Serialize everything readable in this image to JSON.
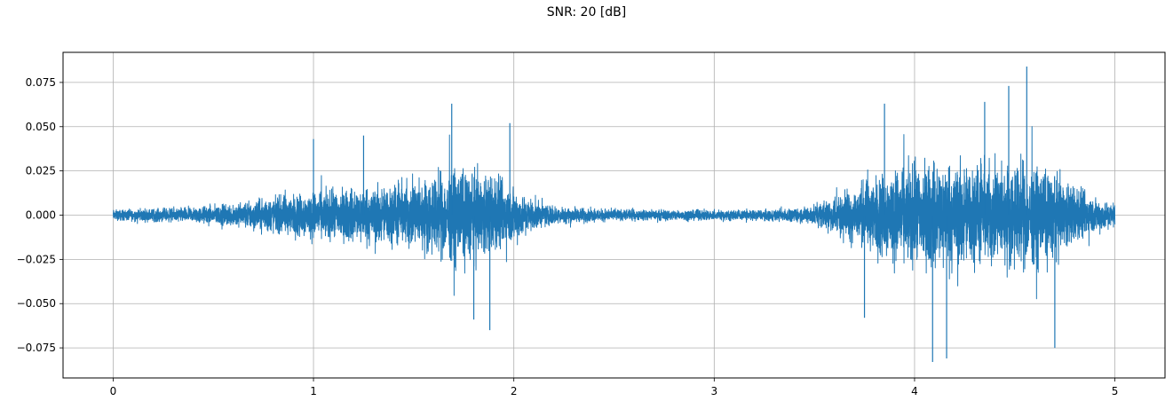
{
  "chart_data": {
    "type": "line",
    "title": "SNR: 20 [dB]",
    "xlabel": "",
    "ylabel": "",
    "xlim": [
      -0.25,
      5.25
    ],
    "ylim": [
      -0.092,
      0.092
    ],
    "grid": true,
    "xticks": [
      0,
      1,
      2,
      3,
      4,
      5
    ],
    "xtick_labels": [
      "0",
      "1",
      "2",
      "3",
      "4",
      "5"
    ],
    "yticks": [
      -0.075,
      -0.05,
      -0.025,
      0.0,
      0.025,
      0.05,
      0.075
    ],
    "ytick_labels": [
      "−0.075",
      "−0.050",
      "−0.025",
      "0.000",
      "0.025",
      "0.050",
      "0.075"
    ],
    "series": [
      {
        "color": "#1f77b4",
        "duration": 5.0,
        "envelope": {
          "t": [
            0.0,
            0.2,
            0.4,
            0.6,
            0.8,
            1.0,
            1.2,
            1.4,
            1.6,
            1.7,
            1.8,
            1.9,
            2.0,
            2.1,
            2.2,
            2.4,
            2.6,
            2.8,
            3.0,
            3.2,
            3.4,
            3.5,
            3.6,
            3.7,
            3.8,
            3.9,
            4.0,
            4.1,
            4.2,
            4.3,
            4.4,
            4.5,
            4.6,
            4.7,
            4.8,
            4.9,
            5.0
          ],
          "amp": [
            0.004,
            0.005,
            0.006,
            0.009,
            0.014,
            0.018,
            0.021,
            0.024,
            0.03,
            0.036,
            0.034,
            0.03,
            0.022,
            0.012,
            0.007,
            0.005,
            0.004,
            0.004,
            0.004,
            0.004,
            0.005,
            0.008,
            0.014,
            0.022,
            0.03,
            0.036,
            0.04,
            0.042,
            0.042,
            0.04,
            0.04,
            0.041,
            0.038,
            0.032,
            0.022,
            0.014,
            0.01
          ]
        },
        "peaks": [
          {
            "t": 1.0,
            "v": 0.043
          },
          {
            "t": 1.25,
            "v": 0.045
          },
          {
            "t": 1.69,
            "v": 0.063
          },
          {
            "t": 1.88,
            "v": -0.065
          },
          {
            "t": 1.98,
            "v": 0.052
          },
          {
            "t": 1.8,
            "v": -0.059
          },
          {
            "t": 3.75,
            "v": -0.058
          },
          {
            "t": 4.09,
            "v": -0.083
          },
          {
            "t": 4.16,
            "v": -0.081
          },
          {
            "t": 4.47,
            "v": 0.073
          },
          {
            "t": 4.56,
            "v": 0.084
          },
          {
            "t": 4.7,
            "v": -0.075
          },
          {
            "t": 3.85,
            "v": 0.063
          },
          {
            "t": 4.35,
            "v": 0.064
          }
        ]
      }
    ]
  }
}
